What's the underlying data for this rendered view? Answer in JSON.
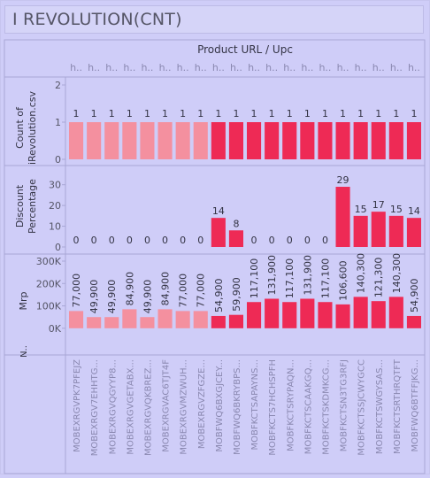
{
  "title": "I REVOLUTION(CNT)",
  "colors": {
    "background": "#cfcdf8",
    "panel_border": "#a9a7d6",
    "light_bar": "#f4909f",
    "dark_bar": "#ee2a55",
    "text": "#333344",
    "axis_text": "#555566",
    "tick_text": "#8a88b0"
  },
  "chart_data": {
    "type": "bar",
    "header_title": "Product URL / Upc",
    "column_headers": [
      "h..",
      "h..",
      "h..",
      "h..",
      "h..",
      "h..",
      "h..",
      "h..",
      "h..",
      "h..",
      "h..",
      "h..",
      "h..",
      "h..",
      "h..",
      "h..",
      "h..",
      "h..",
      "h..",
      "h.."
    ],
    "categories": [
      "MOBEXRGVPK7PFEJZ",
      "MOBEXRGV7EHHTG...",
      "MOBEXRGVQGYYP8...",
      "MOBEXRGVGETABX...",
      "MOBEXRGVQKBREZ...",
      "MOBEXRGVAC6TJT4F",
      "MOBEXRGVMZWUH...",
      "MOBEXRGVZFGZE...",
      "MOBFWQ6BXGJCEY...",
      "MOBFWQ6BKRYBPS...",
      "MOBFKCTSAPAYNS...",
      "MOBFKCTS7HCHSPFH",
      "MOBFKCTSRYPAQN...",
      "MOBFKCTSCAAKGQ...",
      "MOBFKCTSKDMKCG...",
      "MOBFKCTSN3TG3RFJ",
      "MOBFKCTSSJCWYGCC",
      "MOBFKCTSWGYSAS...",
      "MOBFKCTSRTHRQTFT",
      "MOBFWQ6BTFFJKG..."
    ],
    "color_group": [
      "light",
      "light",
      "light",
      "light",
      "light",
      "light",
      "light",
      "light",
      "dark",
      "dark",
      "dark",
      "dark",
      "dark",
      "dark",
      "dark",
      "dark",
      "dark",
      "dark",
      "dark",
      "dark"
    ],
    "panels": [
      {
        "ylabel": "Count of iRevolution.csv",
        "ylim": [
          0,
          2
        ],
        "ticks": [
          {
            "v": 0,
            "label": "0"
          },
          {
            "v": 1,
            "label": "1"
          },
          {
            "v": 2,
            "label": "2"
          }
        ],
        "values": [
          1,
          1,
          1,
          1,
          1,
          1,
          1,
          1,
          1,
          1,
          1,
          1,
          1,
          1,
          1,
          1,
          1,
          1,
          1,
          1
        ],
        "data_labels": [
          "1",
          "1",
          "1",
          "1",
          "1",
          "1",
          "1",
          "1",
          "1",
          "1",
          "1",
          "1",
          "1",
          "1",
          "1",
          "1",
          "1",
          "1",
          "1",
          "1"
        ],
        "label_rotation": 0
      },
      {
        "ylabel": "Discount Percentage",
        "ylim": [
          0,
          32
        ],
        "ticks": [
          {
            "v": 0,
            "label": "0"
          },
          {
            "v": 10,
            "label": "10"
          },
          {
            "v": 20,
            "label": "20"
          },
          {
            "v": 30,
            "label": "30"
          }
        ],
        "values": [
          0,
          0,
          0,
          0,
          0,
          0,
          0,
          0,
          14,
          8,
          0,
          0,
          0,
          0,
          0,
          29,
          15,
          17,
          15,
          14
        ],
        "data_labels": [
          "0",
          "0",
          "0",
          "0",
          "0",
          "0",
          "0",
          "0",
          "14",
          "8",
          "0",
          "0",
          "0",
          "0",
          "0",
          "29",
          "15",
          "17",
          "15",
          "14"
        ],
        "label_rotation": 0
      },
      {
        "ylabel": "Mrp",
        "ylim": [
          -60000,
          300000
        ],
        "ticks": [
          {
            "v": 0,
            "label": "0K"
          },
          {
            "v": 100000,
            "label": "100K"
          },
          {
            "v": 200000,
            "label": "200K"
          },
          {
            "v": 300000,
            "label": "300K"
          }
        ],
        "values": [
          77000,
          49900,
          49900,
          84900,
          49900,
          84900,
          77000,
          77000,
          54900,
          59900,
          117100,
          131900,
          117100,
          131900,
          117100,
          106600,
          140300,
          121300,
          140300,
          54900
        ],
        "data_labels": [
          "77,000",
          "49,900",
          "49,900",
          "84,900",
          "49,900",
          "84,900",
          "77,000",
          "77,000",
          "54,900",
          "59,900",
          "117,100",
          "131,900",
          "117,100",
          "131,900",
          "117,100",
          "106,600",
          "140,300",
          "121,300",
          "140,300",
          "54,900"
        ],
        "label_rotation": -90
      }
    ],
    "extra_row_label": "N..",
    "grid": false,
    "legend": "none"
  }
}
